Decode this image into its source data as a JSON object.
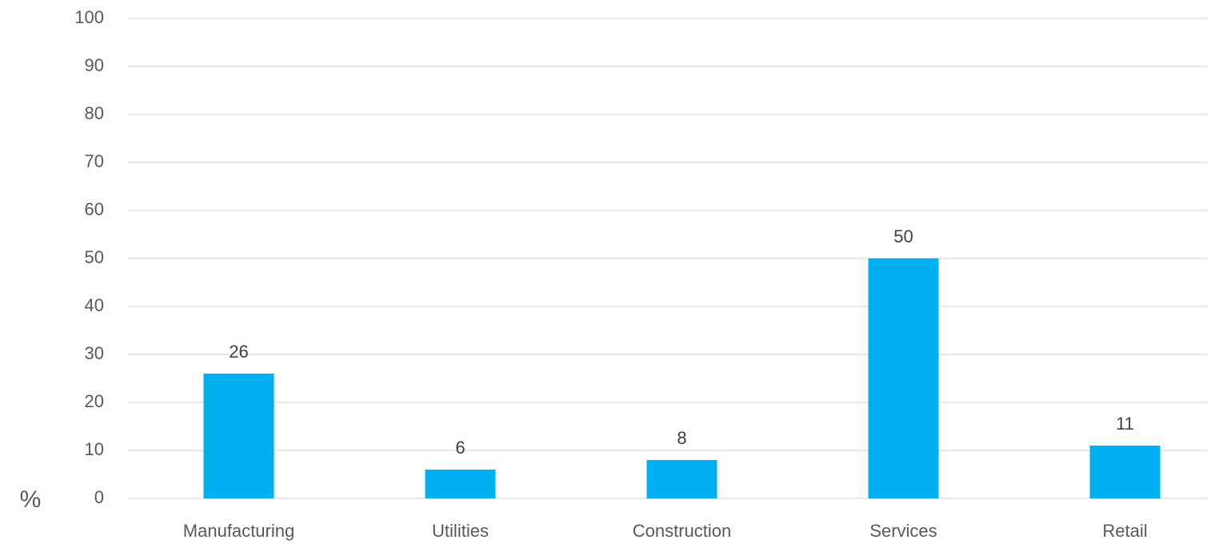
{
  "chart_data": {
    "type": "bar",
    "y_axis_label": "%",
    "categories": [
      "Manufacturing",
      "Utilities",
      "Construction",
      "Services",
      "Retail"
    ],
    "values": [
      26,
      6,
      8,
      50,
      11
    ],
    "color": "#00b0f0",
    "ylim": [
      0,
      100
    ],
    "yticks": [
      0,
      10,
      20,
      30,
      40,
      50,
      60,
      70,
      80,
      90,
      100
    ],
    "grid": true,
    "data_labels": true
  }
}
